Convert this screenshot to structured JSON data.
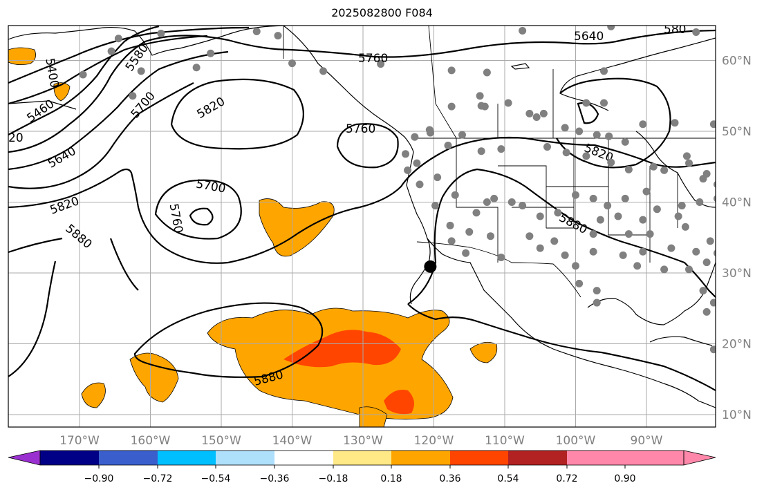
{
  "title": "2025082800 F084",
  "map": {
    "extent": {
      "lon": [
        -180,
        -80
      ],
      "lat": [
        8,
        65
      ]
    },
    "gridlines": true,
    "lat_labels": [
      "60°N",
      "50°N",
      "40°N",
      "30°N",
      "20°N",
      "10°N"
    ],
    "lon_labels": [
      "170°W",
      "160°W",
      "150°W",
      "140°W",
      "130°W",
      "120°W",
      "110°W",
      "100°W",
      "90°W"
    ],
    "contour_labels": [
      "5400",
      "5460",
      "5580",
      "5700",
      "5820",
      "20",
      "5640",
      "5820",
      "5700",
      "5760",
      "5880",
      "5760",
      "5640",
      "580",
      "5820",
      "5880",
      "5880"
    ],
    "marker_point": {
      "lon": -120.5,
      "lat": 30.9
    },
    "station_color": "#808080",
    "stations": [
      [
        -164.5,
        63.1
      ],
      [
        -158.5,
        63.8
      ],
      [
        -145,
        64.1
      ],
      [
        -142,
        63.5
      ],
      [
        -165.5,
        61.3
      ],
      [
        -161.3,
        58.5
      ],
      [
        -151.5,
        61
      ],
      [
        -153.5,
        59
      ],
      [
        -169.5,
        58
      ],
      [
        -162.5,
        55
      ],
      [
        -140,
        59.6
      ],
      [
        -135.6,
        58.5
      ],
      [
        -127.5,
        59.5
      ],
      [
        -117.5,
        58.6
      ],
      [
        -112.5,
        58.3
      ],
      [
        -96,
        58.5
      ],
      [
        -107.5,
        64.2
      ],
      [
        -95,
        64.8
      ],
      [
        -83,
        64
      ],
      [
        -117.5,
        53.5
      ],
      [
        -113.5,
        55
      ],
      [
        -112.8,
        53.5
      ],
      [
        -113.3,
        53.6
      ],
      [
        -109.5,
        54
      ],
      [
        -106.5,
        52.5
      ],
      [
        -105.5,
        52
      ],
      [
        -104.5,
        52.5
      ],
      [
        -98.5,
        54
      ],
      [
        -96,
        54
      ],
      [
        -90.5,
        51
      ],
      [
        -86,
        51.2
      ],
      [
        -80.5,
        51
      ],
      [
        -122.7,
        49.2
      ],
      [
        -120.5,
        49.8
      ],
      [
        -120.6,
        50.2
      ],
      [
        -118,
        48
      ],
      [
        -113.3,
        47.2
      ],
      [
        -116,
        49.5
      ],
      [
        -110.5,
        47.5
      ],
      [
        -104,
        47.8
      ],
      [
        -99.5,
        50
      ],
      [
        -101.5,
        50.5
      ],
      [
        -97,
        49.5
      ],
      [
        -95.3,
        49.3
      ],
      [
        -93,
        48.5
      ],
      [
        -101.3,
        47
      ],
      [
        -98.5,
        46.5
      ],
      [
        -95,
        45.6
      ],
      [
        -92.5,
        44.6
      ],
      [
        -89,
        45
      ],
      [
        -87.5,
        44.5
      ],
      [
        -84.3,
        46.5
      ],
      [
        -84,
        45.5
      ],
      [
        -82,
        43.3
      ],
      [
        -80,
        42.5
      ],
      [
        -81.5,
        44
      ],
      [
        -80,
        40.5
      ],
      [
        -82.5,
        40
      ],
      [
        -85,
        39.5
      ],
      [
        -88.5,
        39
      ],
      [
        -90,
        41.5
      ],
      [
        -93,
        40.5
      ],
      [
        -95.5,
        39.5
      ],
      [
        -97.5,
        40.5
      ],
      [
        -100,
        41
      ],
      [
        -102.5,
        38.5
      ],
      [
        -105,
        38
      ],
      [
        -107.5,
        39.5
      ],
      [
        -109,
        40
      ],
      [
        -111.5,
        40.5
      ],
      [
        -112.5,
        40
      ],
      [
        -114,
        38.5
      ],
      [
        -117,
        41
      ],
      [
        -119.5,
        43.5
      ],
      [
        -122,
        42.5
      ],
      [
        -123.7,
        44.5
      ],
      [
        -124,
        46.8
      ],
      [
        -122.4,
        45.5
      ],
      [
        -119.8,
        39.5
      ],
      [
        -115,
        35.8
      ],
      [
        -112,
        35.2
      ],
      [
        -110.5,
        32.2
      ],
      [
        -106.5,
        35.2
      ],
      [
        -105,
        33.5
      ],
      [
        -103,
        34.5
      ],
      [
        -101.5,
        32.5
      ],
      [
        -100,
        31
      ],
      [
        -99.5,
        28.5
      ],
      [
        -97,
        27.5
      ],
      [
        -97,
        25.8
      ],
      [
        -97.5,
        33
      ],
      [
        -97.5,
        35.5
      ],
      [
        -96.5,
        37.5
      ],
      [
        -94,
        38
      ],
      [
        -92.5,
        35.5
      ],
      [
        -90.5,
        33
      ],
      [
        -93.3,
        32.5
      ],
      [
        -91.3,
        31
      ],
      [
        -87.5,
        30.5
      ],
      [
        -86.5,
        33.5
      ],
      [
        -89.5,
        35.5
      ],
      [
        -90.5,
        37.5
      ],
      [
        -85.5,
        38
      ],
      [
        -84.5,
        36.5
      ],
      [
        -83,
        33
      ],
      [
        -84,
        30.5
      ],
      [
        -81.5,
        31.5
      ],
      [
        -81,
        34.5
      ],
      [
        -80,
        32.8
      ],
      [
        -82,
        27.5
      ],
      [
        -80.5,
        25.8
      ],
      [
        -81.5,
        24.5
      ],
      [
        -117.5,
        34.5
      ],
      [
        -115.5,
        32.8
      ],
      [
        -80.5,
        19.2
      ],
      [
        -117.7,
        36.7
      ]
    ]
  },
  "colorbar": {
    "ticks": [
      "−0.90",
      "−0.72",
      "−0.54",
      "−0.36",
      "−0.18",
      "0.18",
      "0.36",
      "0.54",
      "0.72",
      "0.90"
    ],
    "colors": [
      "#9b30d0",
      "#000087",
      "#3a5fcd",
      "#00bfff",
      "#aee0fb",
      "#ffffff",
      "#ffe987",
      "#ffa500",
      "#ff4500",
      "#b22222",
      "#ff88aa",
      "#ff88aa"
    ]
  },
  "palette": {
    "orange": "#ffa500",
    "red_orange": "#ff4500",
    "grid": "#aaaaaa",
    "land_line": "#000000"
  }
}
